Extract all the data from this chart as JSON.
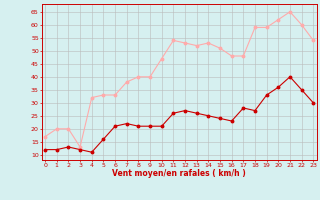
{
  "hours": [
    0,
    1,
    2,
    3,
    4,
    5,
    6,
    7,
    8,
    9,
    10,
    11,
    12,
    13,
    14,
    15,
    16,
    17,
    18,
    19,
    20,
    21,
    22,
    23
  ],
  "wind_avg": [
    12,
    12,
    13,
    12,
    11,
    16,
    21,
    22,
    21,
    21,
    21,
    26,
    27,
    26,
    25,
    24,
    23,
    28,
    27,
    33,
    36,
    40,
    35,
    30
  ],
  "wind_gust": [
    17,
    20,
    20,
    13,
    32,
    33,
    33,
    38,
    40,
    40,
    47,
    54,
    53,
    52,
    53,
    51,
    48,
    48,
    59,
    59,
    62,
    65,
    60,
    54
  ],
  "bg_color": "#d6f0f0",
  "grid_color": "#bbbbbb",
  "avg_color": "#cc0000",
  "gust_color": "#ffaaaa",
  "xlabel": "Vent moyen/en rafales ( km/h )",
  "ylabel_ticks": [
    10,
    15,
    20,
    25,
    30,
    35,
    40,
    45,
    50,
    55,
    60,
    65
  ],
  "ylim": [
    8,
    68
  ],
  "xlim": [
    -0.3,
    23.3
  ]
}
